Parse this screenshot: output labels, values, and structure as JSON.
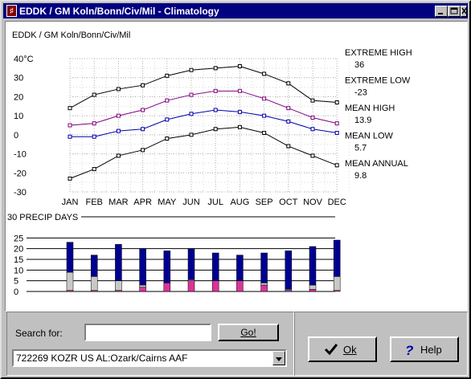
{
  "window": {
    "title": "EDDK / GM Koln/Bonn/Civ/Mil - Climatology"
  },
  "chart": {
    "station_label": "EDDK / GM Koln/Bonn/Civ/Mil",
    "temp_unit_label": "40°C",
    "precip_label": "30 PRECIP DAYS",
    "stats": [
      {
        "label": "EXTREME HIGH",
        "value": "36"
      },
      {
        "label": "EXTREME LOW",
        "value": "-23"
      },
      {
        "label": "MEAN HIGH",
        "value": "13.9"
      },
      {
        "label": "MEAN LOW",
        "value": "5.7"
      },
      {
        "label": "MEAN ANNUAL",
        "value": "9.8"
      }
    ]
  },
  "chart_data": [
    {
      "type": "line",
      "categories": [
        "JAN",
        "FEB",
        "MAR",
        "APR",
        "MAY",
        "JUN",
        "JUL",
        "AUG",
        "SEP",
        "OCT",
        "NOV",
        "DEC"
      ],
      "yticks": [
        "40°C",
        "30",
        "20",
        "10",
        "0",
        "-10",
        "-20",
        "-30"
      ],
      "ylim": [
        -30,
        40
      ],
      "grid": true,
      "series": [
        {
          "values": [
            14,
            21,
            24,
            26,
            31,
            34,
            35,
            36,
            32,
            27,
            18,
            17
          ]
        },
        {
          "values": [
            5,
            6,
            10,
            13,
            18,
            21,
            23,
            23,
            19,
            14,
            9,
            6
          ]
        },
        {
          "values": [
            -1,
            -1,
            2,
            3,
            8,
            11,
            13,
            12,
            10,
            7,
            3,
            1
          ]
        },
        {
          "values": [
            -23,
            -18,
            -11,
            -8,
            -2,
            0,
            3,
            4,
            1,
            -6,
            -11,
            -16
          ]
        }
      ],
      "colors": [
        "#000000",
        "#800080",
        "#0000aa",
        "#000000"
      ]
    },
    {
      "type": "bar",
      "categories": [
        "JAN",
        "FEB",
        "MAR",
        "APR",
        "MAY",
        "JUN",
        "JUL",
        "AUG",
        "SEP",
        "OCT",
        "NOV",
        "DEC"
      ],
      "yticks": [
        "30",
        "25",
        "20",
        "15",
        "10",
        "5",
        "0"
      ],
      "ylim": [
        0,
        30
      ],
      "grid": true,
      "stacked": true,
      "series": [
        {
          "values": [
            0.5,
            0.5,
            0.5,
            2,
            4,
            5,
            5,
            5,
            3,
            0.5,
            1,
            0.5
          ]
        },
        {
          "values": [
            8.5,
            6.5,
            4.5,
            1,
            0,
            0.5,
            0,
            0,
            1,
            0.5,
            2,
            6.5
          ]
        },
        {
          "values": [
            14,
            10,
            17,
            17,
            15,
            14.5,
            13,
            12,
            14,
            18,
            18,
            17
          ]
        }
      ],
      "colors": [
        "#dd3399",
        "#c8c8c8",
        "#000090"
      ]
    }
  ],
  "search": {
    "label": "Search for:",
    "value": "",
    "go_label": "Go!"
  },
  "station_select": {
    "value": "722269 KOZR US AL:Ozark/Cairns AAF"
  },
  "buttons": {
    "ok_label": "Ok",
    "help_label": "Help"
  }
}
